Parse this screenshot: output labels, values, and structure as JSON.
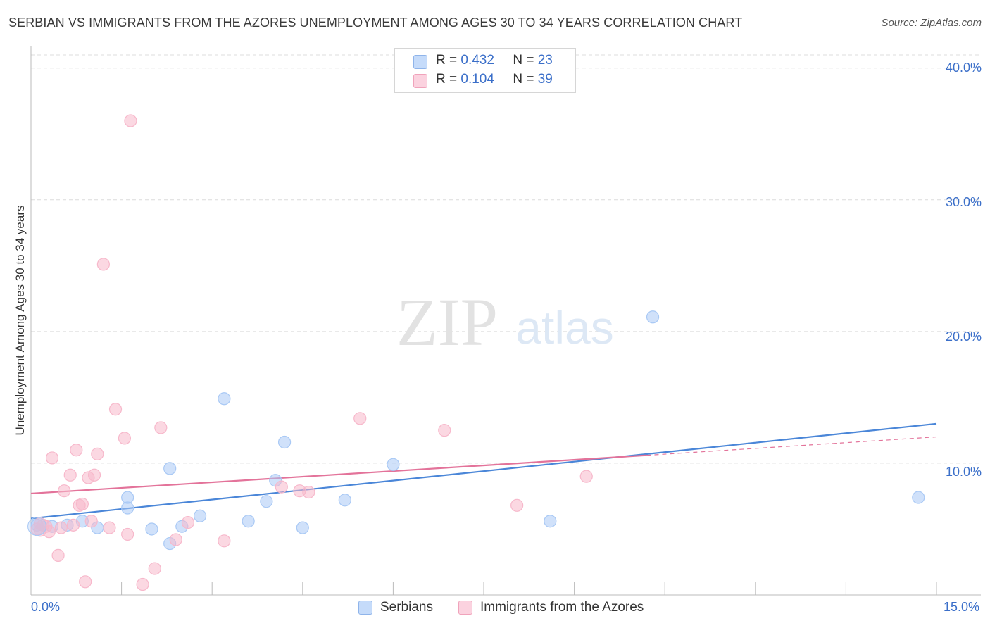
{
  "title": "SERBIAN VS IMMIGRANTS FROM THE AZORES UNEMPLOYMENT AMONG AGES 30 TO 34 YEARS CORRELATION CHART",
  "source": "Source: ZipAtlas.com",
  "watermark": {
    "zip": "ZIP",
    "atlas": "atlas"
  },
  "legend": {
    "rows": [
      {
        "r_label": "R =",
        "r_value": "0.432",
        "n_label": "N =",
        "n_value": "23",
        "color": "#a9c9f5"
      },
      {
        "r_label": "R =",
        "r_value": "0.104",
        "n_label": "N =",
        "n_value": "39",
        "color": "#f7b8cb"
      }
    ]
  },
  "bottom_legend": [
    {
      "label": "Serbians",
      "color": "#a9c9f5"
    },
    {
      "label": "Immigrants from the Azores",
      "color": "#f7b8cb"
    }
  ],
  "chart_data": {
    "type": "scatter",
    "title": "SERBIAN VS IMMIGRANTS FROM THE AZORES UNEMPLOYMENT AMONG AGES 30 TO 34 YEARS CORRELATION CHART",
    "xlabel": "",
    "ylabel": "Unemployment Among Ages 30 to 34 years",
    "xlim": [
      0,
      15
    ],
    "ylim": [
      0,
      41
    ],
    "x_tick_labels": [
      "0.0%",
      "15.0%"
    ],
    "y_ticks": [
      10,
      20,
      30,
      40
    ],
    "y_tick_labels": [
      "10.0%",
      "20.0%",
      "30.0%",
      "40.0%"
    ],
    "grid": true,
    "series": [
      {
        "name": "Serbians",
        "color": "#4a86d8",
        "fill": "#a9c9f5",
        "points": [
          [
            0.1,
            5.3
          ],
          [
            0.35,
            5.2
          ],
          [
            0.6,
            5.3
          ],
          [
            0.85,
            5.6
          ],
          [
            1.1,
            5.1
          ],
          [
            1.6,
            6.6
          ],
          [
            1.6,
            7.4
          ],
          [
            2.0,
            5.0
          ],
          [
            2.3,
            9.6
          ],
          [
            2.3,
            3.9
          ],
          [
            2.5,
            5.2
          ],
          [
            2.8,
            6.0
          ],
          [
            3.2,
            14.9
          ],
          [
            3.6,
            5.6
          ],
          [
            3.9,
            7.1
          ],
          [
            4.05,
            8.7
          ],
          [
            4.2,
            11.6
          ],
          [
            4.5,
            5.1
          ],
          [
            5.2,
            7.2
          ],
          [
            6.0,
            9.9
          ],
          [
            8.6,
            5.6
          ],
          [
            10.3,
            21.1
          ],
          [
            14.7,
            7.4
          ]
        ],
        "trend": {
          "x": [
            0,
            15
          ],
          "y": [
            5.8,
            13.0
          ],
          "style": "solid"
        }
      },
      {
        "name": "Immigrants from the Azores",
        "color": "#e3739a",
        "fill": "#f7b8cb",
        "points": [
          [
            0.1,
            5.0
          ],
          [
            0.15,
            5.4
          ],
          [
            0.25,
            5.2
          ],
          [
            0.3,
            4.8
          ],
          [
            0.35,
            10.4
          ],
          [
            0.45,
            3.0
          ],
          [
            0.55,
            7.9
          ],
          [
            0.65,
            9.1
          ],
          [
            0.7,
            5.3
          ],
          [
            0.75,
            11.0
          ],
          [
            0.8,
            6.8
          ],
          [
            0.85,
            6.9
          ],
          [
            0.9,
            1.0
          ],
          [
            0.95,
            8.9
          ],
          [
            1.0,
            5.6
          ],
          [
            1.05,
            9.1
          ],
          [
            1.1,
            10.7
          ],
          [
            1.2,
            25.1
          ],
          [
            1.3,
            5.1
          ],
          [
            1.4,
            14.1
          ],
          [
            1.55,
            11.9
          ],
          [
            1.6,
            4.6
          ],
          [
            1.65,
            36.0
          ],
          [
            1.85,
            0.8
          ],
          [
            2.05,
            2.0
          ],
          [
            2.15,
            12.7
          ],
          [
            2.4,
            4.2
          ],
          [
            2.6,
            5.5
          ],
          [
            3.2,
            4.1
          ],
          [
            4.15,
            8.2
          ],
          [
            4.45,
            7.9
          ],
          [
            4.6,
            7.8
          ],
          [
            5.45,
            13.4
          ],
          [
            6.85,
            12.5
          ],
          [
            8.05,
            6.8
          ],
          [
            9.2,
            9.0
          ],
          [
            0.2,
            5.3
          ],
          [
            0.5,
            5.1
          ],
          [
            0.15,
            4.9
          ]
        ],
        "trend": {
          "x": [
            0,
            10.2
          ],
          "y": [
            7.7,
            10.6
          ],
          "style": "solid"
        },
        "trend_extension": {
          "x": [
            10.2,
            15
          ],
          "y": [
            10.6,
            12.0
          ],
          "style": "dashed"
        }
      }
    ]
  }
}
